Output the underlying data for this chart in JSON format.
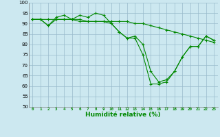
{
  "x": [
    0,
    1,
    2,
    3,
    4,
    5,
    6,
    7,
    8,
    9,
    10,
    11,
    12,
    13,
    14,
    15,
    16,
    17,
    18,
    19,
    20,
    21,
    22,
    23
  ],
  "line1": [
    92,
    92,
    89,
    92,
    92,
    92,
    91,
    91,
    91,
    91,
    90,
    86,
    83,
    83,
    75,
    61,
    61,
    62,
    67,
    74,
    79,
    79,
    84,
    82
  ],
  "line2": [
    92,
    92,
    89,
    93,
    94,
    92,
    94,
    93,
    95,
    94,
    90,
    86,
    83,
    84,
    80,
    67,
    62,
    63,
    67,
    74,
    79,
    79,
    84,
    82
  ],
  "line3": [
    92,
    92,
    92,
    92,
    92,
    92,
    92,
    91,
    91,
    91,
    91,
    91,
    91,
    90,
    90,
    89,
    88,
    87,
    86,
    85,
    84,
    83,
    82,
    81
  ],
  "bg_color": "#cce8f0",
  "line_color": "#008800",
  "grid_color": "#99bbcc",
  "xlabel": "Humidité relative (%)",
  "ylim": [
    50,
    100
  ],
  "xlim": [
    -0.5,
    23.5
  ],
  "yticks": [
    50,
    55,
    60,
    65,
    70,
    75,
    80,
    85,
    90,
    95,
    100
  ],
  "xticks": [
    0,
    1,
    2,
    3,
    4,
    5,
    6,
    7,
    8,
    9,
    10,
    11,
    12,
    13,
    14,
    15,
    16,
    17,
    18,
    19,
    20,
    21,
    22,
    23
  ]
}
